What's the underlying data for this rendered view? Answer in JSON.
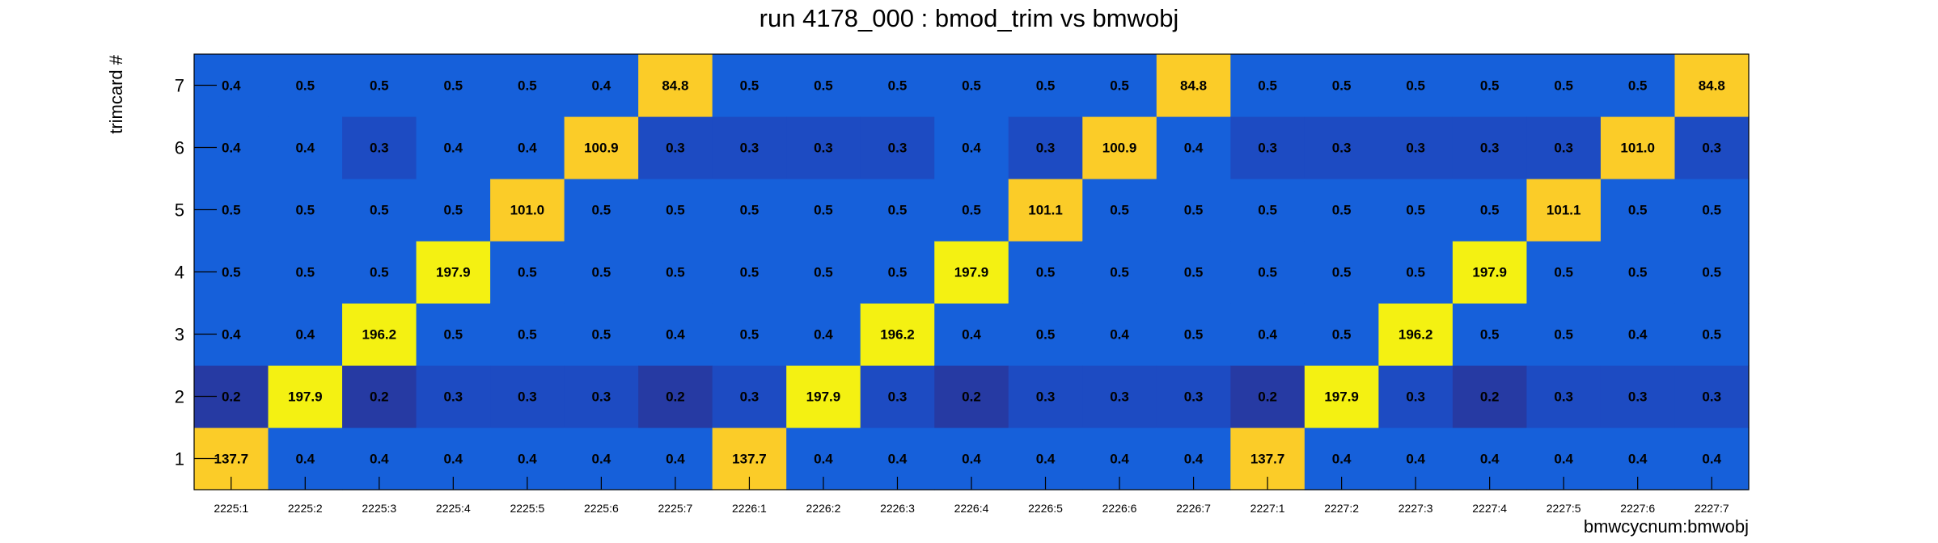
{
  "chart_data": {
    "type": "heatmap",
    "title": "run 4178_000 : bmod_trim vs bmwobj",
    "xlabel": "bmwcycnum:bmwobj",
    "ylabel": "trimcard #",
    "x_categories": [
      "2225:1",
      "2225:2",
      "2225:3",
      "2225:4",
      "2225:5",
      "2225:6",
      "2225:7",
      "2226:1",
      "2226:2",
      "2226:3",
      "2226:4",
      "2226:5",
      "2226:6",
      "2226:7",
      "2227:1",
      "2227:2",
      "2227:3",
      "2227:4",
      "2227:5",
      "2227:6",
      "2227:7"
    ],
    "y_categories": [
      "1",
      "2",
      "3",
      "4",
      "5",
      "6",
      "7"
    ],
    "values": [
      [
        137.7,
        0.2,
        0.4,
        0.5,
        0.5,
        0.4,
        0.4
      ],
      [
        0.4,
        197.9,
        0.4,
        0.5,
        0.5,
        0.4,
        0.5
      ],
      [
        0.4,
        0.2,
        196.2,
        0.5,
        0.5,
        0.3,
        0.5
      ],
      [
        0.4,
        0.3,
        0.5,
        197.9,
        0.5,
        0.4,
        0.5
      ],
      [
        0.4,
        0.3,
        0.5,
        0.5,
        101.0,
        0.4,
        0.5
      ],
      [
        0.4,
        0.3,
        0.5,
        0.5,
        0.5,
        100.9,
        0.4
      ],
      [
        0.4,
        0.2,
        0.4,
        0.5,
        0.5,
        0.3,
        84.8
      ],
      [
        137.7,
        0.3,
        0.5,
        0.5,
        0.5,
        0.3,
        0.5
      ],
      [
        0.4,
        197.9,
        0.4,
        0.5,
        0.5,
        0.3,
        0.5
      ],
      [
        0.4,
        0.3,
        196.2,
        0.5,
        0.5,
        0.3,
        0.5
      ],
      [
        0.4,
        0.2,
        0.4,
        197.9,
        0.5,
        0.4,
        0.5
      ],
      [
        0.4,
        0.3,
        0.5,
        0.5,
        101.1,
        0.3,
        0.5
      ],
      [
        0.4,
        0.3,
        0.4,
        0.5,
        0.5,
        100.9,
        0.5
      ],
      [
        0.4,
        0.3,
        0.5,
        0.5,
        0.5,
        0.4,
        84.8
      ],
      [
        137.7,
        0.2,
        0.4,
        0.5,
        0.5,
        0.3,
        0.5
      ],
      [
        0.4,
        197.9,
        0.5,
        0.5,
        0.5,
        0.3,
        0.5
      ],
      [
        0.4,
        0.3,
        196.2,
        0.5,
        0.5,
        0.3,
        0.5
      ],
      [
        0.4,
        0.2,
        0.5,
        197.9,
        0.5,
        0.3,
        0.5
      ],
      [
        0.4,
        0.3,
        0.5,
        0.5,
        101.1,
        0.3,
        0.5
      ],
      [
        0.4,
        0.3,
        0.4,
        0.5,
        0.5,
        101.0,
        0.5
      ],
      [
        0.4,
        0.3,
        0.5,
        0.5,
        0.5,
        0.3,
        84.8
      ]
    ],
    "value_format": "one-decimal",
    "colors": {
      "very_low": "#263aa3",
      "low": "#1d4bc2",
      "base": "#1660da",
      "mid": "#fbcc28",
      "high": "#f4f112"
    },
    "grid": false,
    "legend": "none"
  }
}
